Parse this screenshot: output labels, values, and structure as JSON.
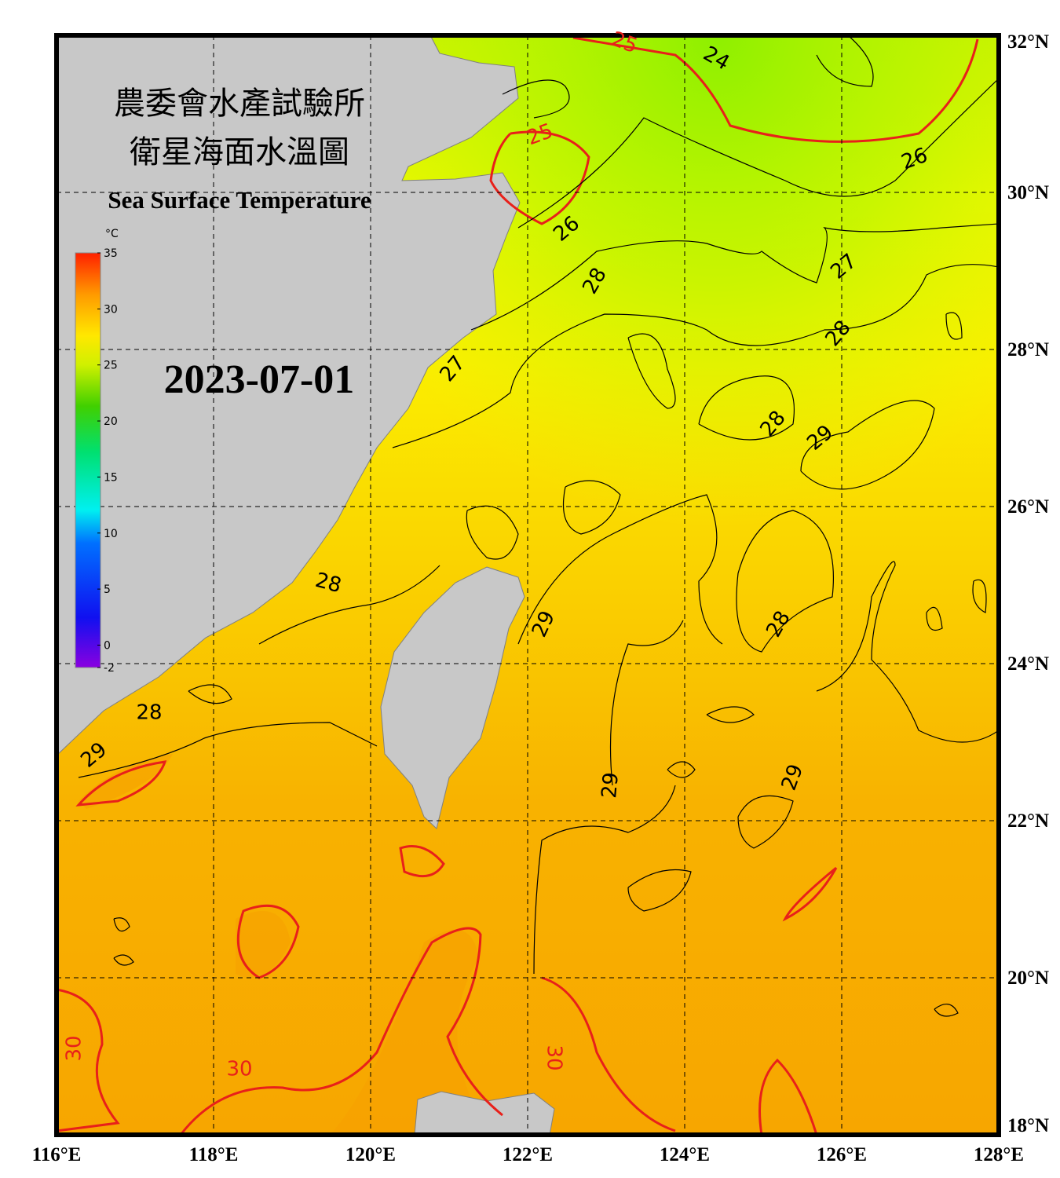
{
  "title_zh_1": "農委會水產試驗所",
  "title_zh_2": "衛星海面水溫圖",
  "title_en": "Sea Surface Temperature",
  "date": "2023-07-01",
  "colorbar": {
    "unit": "°C",
    "range": [
      -2,
      35
    ],
    "ticks": [
      35,
      30,
      25,
      20,
      15,
      10,
      5,
      0,
      -2
    ]
  },
  "lon_ticks": [
    {
      "value": 116,
      "label": "116°E"
    },
    {
      "value": 118,
      "label": "118°E"
    },
    {
      "value": 120,
      "label": "120°E"
    },
    {
      "value": 122,
      "label": "122°E"
    },
    {
      "value": 124,
      "label": "124°E"
    },
    {
      "value": 126,
      "label": "126°E"
    },
    {
      "value": 128,
      "label": "128°E"
    }
  ],
  "lat_ticks": [
    {
      "value": 32,
      "label": "32°N"
    },
    {
      "value": 30,
      "label": "30°N"
    },
    {
      "value": 28,
      "label": "28°N"
    },
    {
      "value": 26,
      "label": "26°N"
    },
    {
      "value": 24,
      "label": "24°N"
    },
    {
      "value": 22,
      "label": "22°N"
    },
    {
      "value": 20,
      "label": "20°N"
    },
    {
      "value": 18,
      "label": "18°N"
    }
  ],
  "contour_labels": [
    "25",
    "24",
    "25",
    "26",
    "26",
    "27",
    "28",
    "28",
    "27",
    "28",
    "29",
    "28",
    "29",
    "28",
    "28",
    "29",
    "29",
    "29",
    "30",
    "30",
    "30"
  ]
}
